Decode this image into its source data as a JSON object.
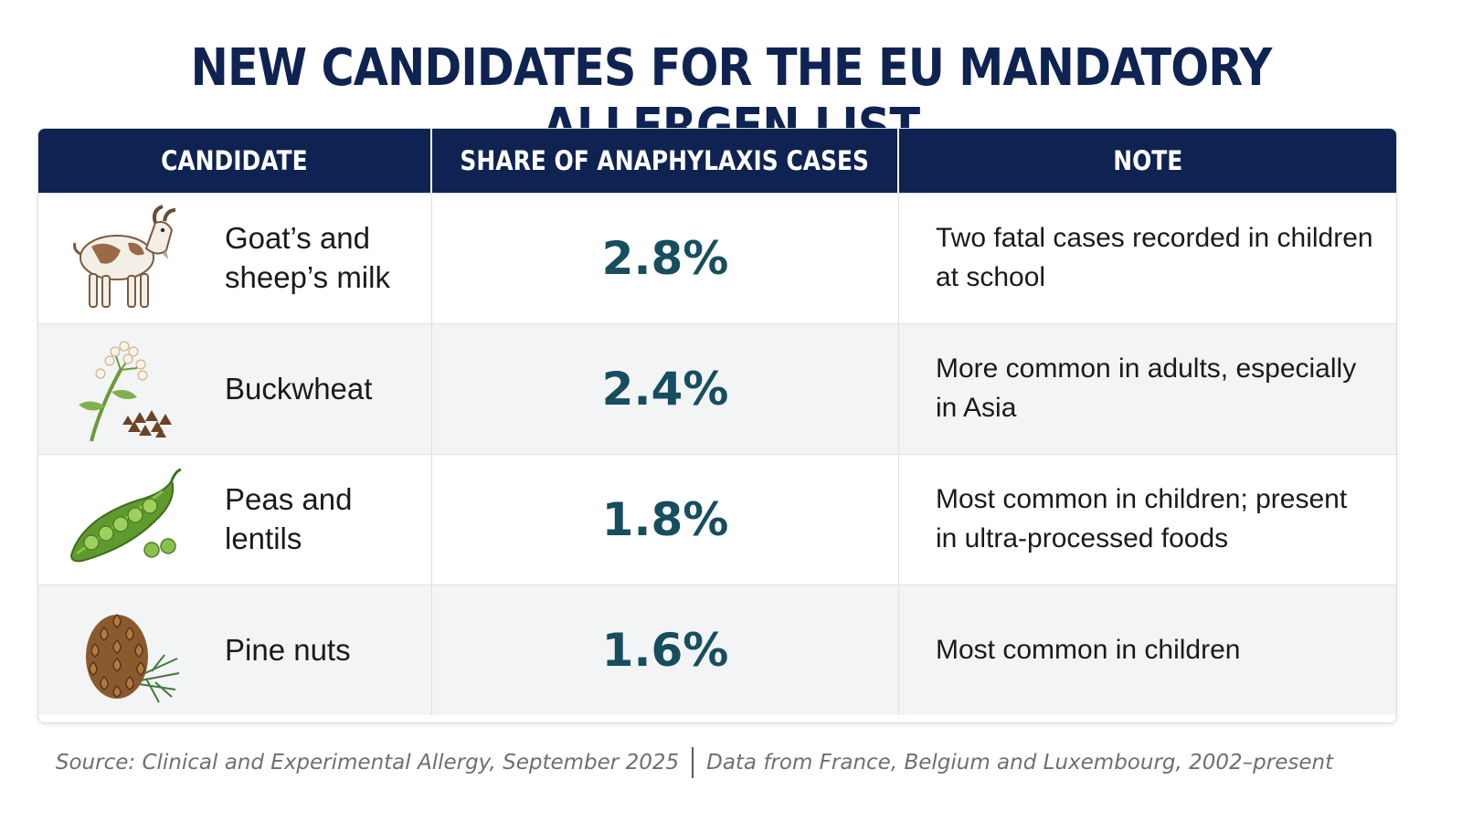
{
  "title": "NEW CANDIDATES FOR THE EU MANDATORY ALLERGEN LIST",
  "table": {
    "headers": [
      "CANDIDATE",
      "SHARE OF ANAPHYLAXIS CASES",
      "NOTE"
    ],
    "rows": [
      {
        "icon": "goat-icon",
        "name": "Goat’s and sheep’s milk",
        "value": "2.8%",
        "note": "Two fatal cases recorded in children at school"
      },
      {
        "icon": "buckwheat-icon",
        "name": "Buckwheat",
        "value": "2.4%",
        "note": "More common in adults, especially in Asia"
      },
      {
        "icon": "pea-pod-icon",
        "name": "Peas and lentils",
        "value": "1.8%",
        "note": "Most common in children; present in ultra-processed foods"
      },
      {
        "icon": "pine-cone-icon",
        "name": "Pine nuts",
        "value": "1.6%",
        "note": "Most common in children"
      }
    ]
  },
  "source": {
    "left": "Source: Clinical and Experimental Allergy, September 2025",
    "right": "Data from France, Belgium and Luxembourg, 2002–present"
  },
  "colors": {
    "header": "#0e2352",
    "value": "#164e5f",
    "alt_row": "#f3f4f6"
  },
  "chart_data": {
    "type": "table",
    "title": "NEW CANDIDATES FOR THE EU MANDATORY ALLERGEN LIST",
    "columns": [
      "CANDIDATE",
      "SHARE OF ANAPHYLAXIS CASES",
      "NOTE"
    ],
    "categories": [
      "Goat’s and sheep’s milk",
      "Buckwheat",
      "Peas and lentils",
      "Pine nuts"
    ],
    "values": [
      2.8,
      2.4,
      1.8,
      1.6
    ],
    "unit": "%"
  }
}
